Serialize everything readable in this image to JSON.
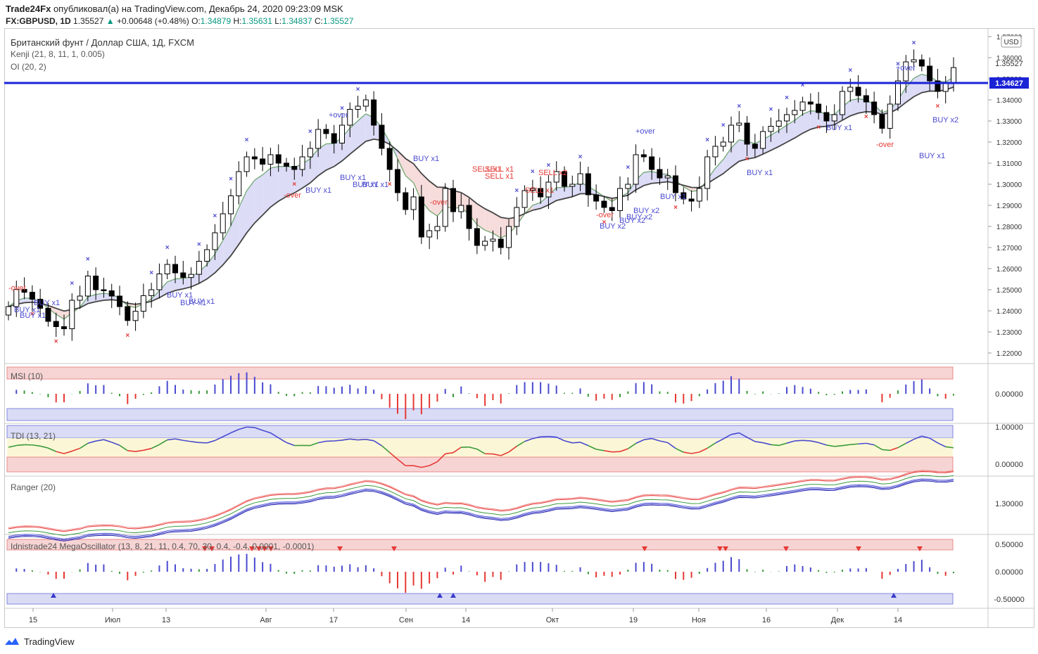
{
  "header": {
    "author": "Trade24Fx",
    "published_text": "опубликовал(а) на TradingView.com, Декабрь 24, 2020 09:23:09 MSK",
    "symbol": "FX:GBPUSD, 1D",
    "last": "1.35527",
    "change": "+0.00648 (+0.48%)",
    "o_label": "O:",
    "o": "1.34879",
    "h_label": "H:",
    "h": "1.35631",
    "l_label": "L:",
    "l": "1.34837",
    "c_label": "C:",
    "c": "1.35527"
  },
  "main": {
    "legend_title": "Британский фунт / Доллар США, 1Д, FXCM",
    "legend_ind1": "Kenji (21, 8, 11, 1, 0.005)",
    "legend_ind2": "OI (20, 2)",
    "currency": "USD",
    "price_line_label": "1.34627",
    "last_price_label": "1.35527"
  },
  "chart_data": {
    "type": "candlestick",
    "y_ticks": [
      "1.37000",
      "1.36000",
      "1.35000",
      "1.34000",
      "1.33000",
      "1.32000",
      "1.31000",
      "1.30000",
      "1.29000",
      "1.28000",
      "1.27000",
      "1.26000",
      "1.25000",
      "1.24000",
      "1.23000",
      "1.22000"
    ],
    "ylim": [
      1.218,
      1.372
    ],
    "horizontal_line": 1.34627,
    "x_ticks": [
      "15",
      "Июл",
      "13",
      "Авг",
      "17",
      "Сен",
      "14",
      "Окт",
      "19",
      "Ноя",
      "16",
      "Дек",
      "14"
    ],
    "close": [
      1.242,
      1.2502,
      1.2488,
      1.2455,
      1.2412,
      1.235,
      1.2325,
      1.2315,
      1.245,
      1.247,
      1.2565,
      1.25,
      1.2495,
      1.247,
      1.242,
      1.2354,
      1.2398,
      1.2472,
      1.25,
      1.2575,
      1.262,
      1.258,
      1.2558,
      1.2573,
      1.2635,
      1.269,
      1.277,
      1.286,
      1.2945,
      1.306,
      1.313,
      1.312,
      1.3095,
      1.314,
      1.31,
      1.3085,
      1.307,
      1.313,
      1.317,
      1.326,
      1.324,
      1.3195,
      1.328,
      1.3355,
      1.337,
      1.34,
      1.328,
      1.317,
      1.307,
      1.296,
      1.288,
      1.294,
      1.275,
      1.278,
      1.28,
      1.298,
      1.287,
      1.29,
      1.279,
      1.271,
      1.273,
      1.274,
      1.27,
      1.28,
      1.289,
      1.297,
      1.298,
      1.294,
      1.301,
      1.306,
      1.299,
      1.3,
      1.305,
      1.295,
      1.292,
      1.289,
      1.2875,
      1.298,
      1.3,
      1.314,
      1.313,
      1.307,
      1.303,
      1.304,
      1.296,
      1.293,
      1.292,
      1.298,
      1.313,
      1.318,
      1.32,
      1.328,
      1.329,
      1.319,
      1.317,
      1.325,
      1.3275,
      1.33,
      1.333,
      1.335,
      1.339,
      1.338,
      1.334,
      1.33,
      1.333,
      1.344,
      1.346,
      1.342,
      1.339,
      1.333,
      1.3265,
      1.338,
      1.349,
      1.358,
      1.359,
      1.356,
      1.349,
      1.344,
      1.348,
      1.3553
    ],
    "panels": [
      {
        "name": "MSI (10)",
        "tick": "0.00000"
      },
      {
        "name": "TDI (13, 21)",
        "ticks": [
          "1.00000",
          "0.00000"
        ]
      },
      {
        "name": "Ranger (20)",
        "tick": "1.30000"
      },
      {
        "name": "Idnistrade24 MegaOscillator (13, 8, 21, 11, 0.4, 70, 30, 0.4, -0.4, 0.0001, -0.0001)",
        "ticks": [
          "0.50000",
          "0.00000",
          "-0.50000"
        ]
      }
    ],
    "annotations": {
      "buy": [
        "BUY x1",
        "BUY x1",
        "BUY x1",
        "BUY x1",
        "BUY x1",
        "BUY x1",
        "BUY x1",
        "BUY x1",
        "BUY x1",
        "BUY x1",
        "BUY x1",
        "BUY x1",
        "BUY x2",
        "BUY x2",
        "BUY x2",
        "BUY x2",
        "BUY x1",
        "BUY x1",
        "BUY x1",
        "BUY x2"
      ],
      "sell": [
        "SELL x1",
        "SELL x1",
        "SELL x1",
        "SELL x2",
        "SELL x1"
      ],
      "over": [
        "+over",
        "+over",
        "+over"
      ],
      "under": [
        "-over",
        "-over",
        "-over",
        "-over",
        "-over"
      ]
    }
  },
  "footer": {
    "brand": "TradingView"
  }
}
